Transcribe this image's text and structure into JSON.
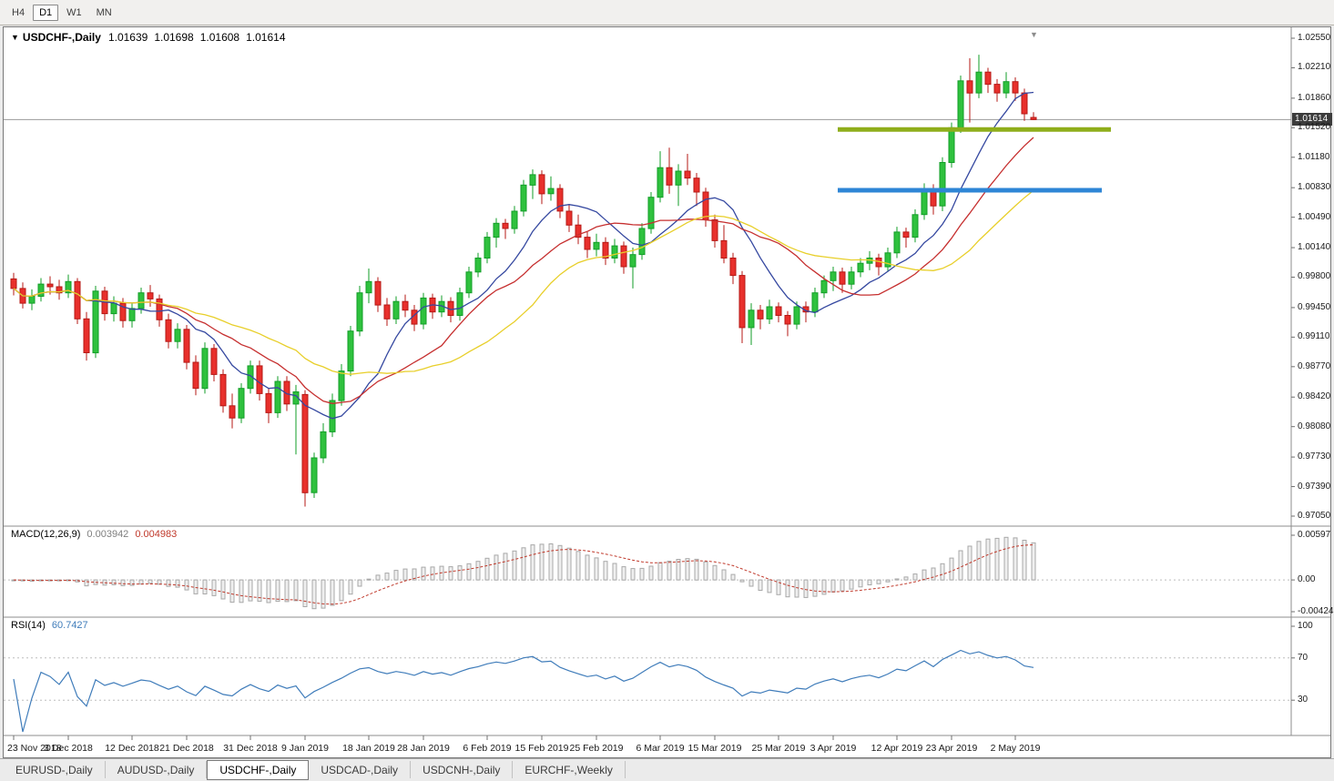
{
  "toolbar": {
    "periods": [
      "H4",
      "D1",
      "W1",
      "MN"
    ],
    "active": "D1"
  },
  "chart": {
    "title": {
      "symbol": "USDCHF-,Daily",
      "open": "1.01639",
      "high": "1.01698",
      "low": "1.01608",
      "close": "1.01614"
    },
    "price_badge": "1.01614",
    "price_axis": [
      "1.02550",
      "1.02210",
      "1.01860",
      "1.01520",
      "1.01180",
      "1.00830",
      "1.00490",
      "1.00140",
      "0.99800",
      "0.99450",
      "0.99110",
      "0.98770",
      "0.98420",
      "0.98080",
      "0.97730",
      "0.97390",
      "0.97050"
    ],
    "macd": {
      "label": "MACD(12,26,9)",
      "value_main": "0.003942",
      "value_signal": "0.004983",
      "axis": [
        "0.00597",
        "0.00",
        "-0.00424"
      ]
    },
    "rsi": {
      "label": "RSI(14)",
      "value": "60.7427",
      "axis": [
        "100",
        "70",
        "30"
      ]
    }
  },
  "bottom_tabs": {
    "items": [
      "EURUSD-,Daily",
      "AUDUSD-,Daily",
      "USDCHF-,Daily",
      "USDCAD-,Daily",
      "USDCNH-,Daily",
      "EURCHF-,Weekly"
    ],
    "active_index": 2
  },
  "chart_data": {
    "type": "candlestick",
    "symbol": "USDCHF",
    "timeframe": "Daily",
    "current_price": 1.01614,
    "price_range": [
      0.9705,
      1.0255
    ],
    "style": {
      "up_color": "#2fc13e",
      "up_border": "#119e27",
      "down_color": "#e8302c",
      "down_border": "#b61815",
      "bid_line_color": "#9a9a9a",
      "background": "#ffffff"
    },
    "indicators": {
      "moving_averages": [
        {
          "period": 9,
          "color": "#3548a0"
        },
        {
          "period": 16,
          "color": "#c62f2f"
        },
        {
          "period": 26,
          "color": "#e8cf2a"
        }
      ],
      "macd": {
        "fast": 12,
        "slow": 26,
        "signal": 9,
        "histogram_stroke": "#a8a8a8",
        "histogram_fill": "#efefef",
        "signal_color": "#c0392b",
        "last_main": 0.003942,
        "last_signal": 0.004983,
        "scale_max": 0.00597,
        "scale_min": -0.00424
      },
      "rsi": {
        "period": 14,
        "color": "#3f7cba",
        "last": 60.7427,
        "levels": [
          70,
          30
        ],
        "scale": [
          0,
          100
        ]
      }
    },
    "objects": [
      {
        "name": "resistance-line-green",
        "type": "horizontal-segment",
        "price": 1.015,
        "from_index": 91,
        "to_index": 120,
        "color": "#8fae1b",
        "width": 5
      },
      {
        "name": "support-line-blue",
        "type": "horizontal-segment",
        "price": 1.008,
        "from_index": 91,
        "to_index": 119,
        "color": "#2e86d6",
        "width": 5
      }
    ],
    "date_ticks": [
      {
        "i": 0,
        "label": "23 Nov 2018"
      },
      {
        "i": 6,
        "label": "3 Dec 2018"
      },
      {
        "i": 13,
        "label": "12 Dec 2018"
      },
      {
        "i": 19,
        "label": "21 Dec 2018"
      },
      {
        "i": 26,
        "label": "31 Dec 2018"
      },
      {
        "i": 32,
        "label": "9 Jan 2019"
      },
      {
        "i": 39,
        "label": "18 Jan 2019"
      },
      {
        "i": 45,
        "label": "28 Jan 2019"
      },
      {
        "i": 52,
        "label": "6 Feb 2019"
      },
      {
        "i": 58,
        "label": "15 Feb 2019"
      },
      {
        "i": 64,
        "label": "25 Feb 2019"
      },
      {
        "i": 71,
        "label": "6 Mar 2019"
      },
      {
        "i": 77,
        "label": "15 Mar 2019"
      },
      {
        "i": 84,
        "label": "25 Mar 2019"
      },
      {
        "i": 90,
        "label": "3 Apr 2019"
      },
      {
        "i": 97,
        "label": "12 Apr 2019"
      },
      {
        "i": 103,
        "label": "23 Apr 2019"
      },
      {
        "i": 110,
        "label": "2 May 2019"
      }
    ],
    "ohlc": [
      [
        0.9978,
        0.9985,
        0.9959,
        0.9967
      ],
      [
        0.9967,
        0.9974,
        0.9944,
        0.995
      ],
      [
        0.995,
        0.9966,
        0.9942,
        0.9958
      ],
      [
        0.9958,
        0.9979,
        0.9952,
        0.9972
      ],
      [
        0.9972,
        0.9981,
        0.996,
        0.9969
      ],
      [
        0.9969,
        0.9977,
        0.9954,
        0.9962
      ],
      [
        0.9962,
        0.9983,
        0.9956,
        0.9975
      ],
      [
        0.9975,
        0.9979,
        0.9926,
        0.9932
      ],
      [
        0.9932,
        0.994,
        0.9884,
        0.9893
      ],
      [
        0.9893,
        0.997,
        0.9887,
        0.9964
      ],
      [
        0.9964,
        0.9969,
        0.993,
        0.9938
      ],
      [
        0.9938,
        0.9958,
        0.9929,
        0.995
      ],
      [
        0.995,
        0.9956,
        0.9922,
        0.993
      ],
      [
        0.993,
        0.995,
        0.9922,
        0.9944
      ],
      [
        0.9944,
        0.9968,
        0.9938,
        0.9962
      ],
      [
        0.9962,
        0.9971,
        0.9946,
        0.9955
      ],
      [
        0.9955,
        0.996,
        0.9923,
        0.9931
      ],
      [
        0.9931,
        0.9938,
        0.9898,
        0.9906
      ],
      [
        0.9906,
        0.9927,
        0.9898,
        0.992
      ],
      [
        0.992,
        0.9925,
        0.9874,
        0.9882
      ],
      [
        0.9882,
        0.989,
        0.9844,
        0.9852
      ],
      [
        0.9852,
        0.9905,
        0.9846,
        0.9898
      ],
      [
        0.9898,
        0.9903,
        0.986,
        0.9868
      ],
      [
        0.9868,
        0.9874,
        0.9824,
        0.9832
      ],
      [
        0.9832,
        0.9846,
        0.9806,
        0.9818
      ],
      [
        0.9818,
        0.9858,
        0.9812,
        0.9852
      ],
      [
        0.9852,
        0.9884,
        0.9846,
        0.9878
      ],
      [
        0.9878,
        0.9884,
        0.9838,
        0.9846
      ],
      [
        0.9846,
        0.9852,
        0.9812,
        0.9824
      ],
      [
        0.9824,
        0.9866,
        0.9818,
        0.986
      ],
      [
        0.986,
        0.9866,
        0.9826,
        0.9834
      ],
      [
        0.9834,
        0.9856,
        0.9776,
        0.9848
      ],
      [
        0.9845,
        0.985,
        0.9716,
        0.9732
      ],
      [
        0.9732,
        0.9778,
        0.9726,
        0.9772
      ],
      [
        0.9772,
        0.9812,
        0.9766,
        0.9802
      ],
      [
        0.9802,
        0.9846,
        0.9796,
        0.9838
      ],
      [
        0.9838,
        0.988,
        0.9832,
        0.9872
      ],
      [
        0.9872,
        0.9924,
        0.9866,
        0.9918
      ],
      [
        0.9918,
        0.997,
        0.9912,
        0.9962
      ],
      [
        0.9962,
        0.999,
        0.995,
        0.9975
      ],
      [
        0.9975,
        0.998,
        0.994,
        0.9948
      ],
      [
        0.9948,
        0.9956,
        0.9924,
        0.9932
      ],
      [
        0.9932,
        0.9958,
        0.9926,
        0.9952
      ],
      [
        0.9952,
        0.996,
        0.9934,
        0.9942
      ],
      [
        0.9942,
        0.9948,
        0.9918,
        0.9926
      ],
      [
        0.9926,
        0.9962,
        0.992,
        0.9956
      ],
      [
        0.9956,
        0.9961,
        0.9932,
        0.994
      ],
      [
        0.994,
        0.9959,
        0.9934,
        0.9952
      ],
      [
        0.9952,
        0.9957,
        0.9928,
        0.9936
      ],
      [
        0.9936,
        0.9968,
        0.993,
        0.9962
      ],
      [
        0.9962,
        0.9992,
        0.9956,
        0.9986
      ],
      [
        0.9986,
        1.0008,
        0.998,
        1.0002
      ],
      [
        1.0002,
        1.0032,
        0.9996,
        1.0026
      ],
      [
        1.0026,
        1.0048,
        1.0014,
        1.0042
      ],
      [
        1.0042,
        1.0047,
        1.0024,
        1.0036
      ],
      [
        1.0036,
        1.0062,
        1.003,
        1.0056
      ],
      [
        1.0056,
        1.0092,
        1.005,
        1.0086
      ],
      [
        1.0086,
        1.0104,
        1.007,
        1.0098
      ],
      [
        1.0098,
        1.0103,
        1.0064,
        1.0076
      ],
      [
        1.0076,
        1.0096,
        1.0068,
        1.0082
      ],
      [
        1.0082,
        1.0087,
        1.0048,
        1.0056
      ],
      [
        1.0056,
        1.0064,
        1.0032,
        1.004
      ],
      [
        1.004,
        1.0052,
        1.0018,
        1.0026
      ],
      [
        1.0026,
        1.0032,
        1.0002,
        1.0012
      ],
      [
        1.0012,
        1.003,
        1.0004,
        1.002
      ],
      [
        1.002,
        1.0026,
        0.9994,
        1.0002
      ],
      [
        1.0002,
        1.0024,
        0.9996,
        1.0016
      ],
      [
        1.0016,
        1.0021,
        0.9984,
        0.9992
      ],
      [
        0.9992,
        1.0014,
        0.9967,
        1.0006
      ],
      [
        1.0006,
        1.0042,
        1.0,
        1.0036
      ],
      [
        1.0036,
        1.0078,
        1.003,
        1.0072
      ],
      [
        1.0072,
        1.0125,
        1.0066,
        1.0106
      ],
      [
        1.0106,
        1.0129,
        1.0076,
        1.0086
      ],
      [
        1.0086,
        1.011,
        1.0062,
        1.0102
      ],
      [
        1.0102,
        1.0122,
        1.0086,
        1.0094
      ],
      [
        1.0094,
        1.01,
        1.0062,
        1.0078
      ],
      [
        1.0078,
        1.0083,
        1.0038,
        1.0046
      ],
      [
        1.0046,
        1.0052,
        1.0014,
        1.0022
      ],
      [
        1.0022,
        1.004,
        0.9996,
        1.0002
      ],
      [
        1.0002,
        1.0008,
        0.9972,
        0.9982
      ],
      [
        0.9982,
        0.9987,
        0.9904,
        0.9922
      ],
      [
        0.9922,
        0.995,
        0.9902,
        0.9942
      ],
      [
        0.9942,
        0.9948,
        0.992,
        0.9932
      ],
      [
        0.9932,
        0.9954,
        0.9926,
        0.9946
      ],
      [
        0.9946,
        0.9951,
        0.9928,
        0.9936
      ],
      [
        0.9936,
        0.9941,
        0.9912,
        0.9926
      ],
      [
        0.9926,
        0.9952,
        0.992,
        0.9946
      ],
      [
        0.9946,
        0.9952,
        0.9928,
        0.994
      ],
      [
        0.994,
        0.9968,
        0.9934,
        0.9962
      ],
      [
        0.9962,
        0.9982,
        0.9956,
        0.9976
      ],
      [
        0.9976,
        0.9992,
        0.9964,
        0.9986
      ],
      [
        0.9986,
        0.9991,
        0.9962,
        0.9972
      ],
      [
        0.9972,
        0.9992,
        0.9966,
        0.9986
      ],
      [
        0.9986,
        1.0002,
        0.998,
        0.9996
      ],
      [
        0.9996,
        1.001,
        0.9988,
        1.0002
      ],
      [
        1.0002,
        1.0007,
        0.9982,
        0.9992
      ],
      [
        0.9992,
        1.0014,
        0.9986,
        1.0008
      ],
      [
        1.0008,
        1.0038,
        1.0002,
        1.0032
      ],
      [
        1.0032,
        1.0037,
        1.0014,
        1.0026
      ],
      [
        1.0026,
        1.0058,
        1.002,
        1.0052
      ],
      [
        1.0052,
        1.0088,
        1.0046,
        1.0082
      ],
      [
        1.0082,
        1.0087,
        1.0052,
        1.0062
      ],
      [
        1.0062,
        1.0118,
        1.0056,
        1.0112
      ],
      [
        1.0112,
        1.0158,
        1.0106,
        1.0152
      ],
      [
        1.0152,
        1.0212,
        1.0146,
        1.0206
      ],
      [
        1.0206,
        1.0232,
        1.0158,
        1.0192
      ],
      [
        1.0192,
        1.0236,
        1.0186,
        1.0216
      ],
      [
        1.0216,
        1.0221,
        1.0192,
        1.0202
      ],
      [
        1.0202,
        1.0208,
        1.0182,
        1.0192
      ],
      [
        1.0192,
        1.0216,
        1.0186,
        1.0205
      ],
      [
        1.0205,
        1.021,
        1.0183,
        1.0192
      ],
      [
        1.0192,
        1.0197,
        1.016,
        1.0168
      ],
      [
        1.01639,
        1.01698,
        1.01608,
        1.01614
      ]
    ]
  }
}
